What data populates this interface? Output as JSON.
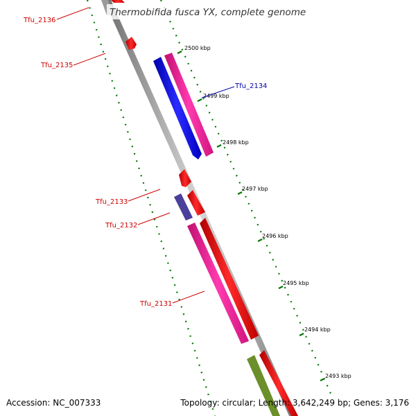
{
  "title": "Thermobifida fusca YX, complete genome",
  "footer": {
    "accession": "Accession: NC_007333",
    "topology": "Topology: circular; Length: 3,642,249 bp; Genes: 3,176"
  },
  "ticks": [
    "2500 kbp",
    "2499 kbp",
    "2498 kbp",
    "2497 kbp",
    "2496 kbp",
    "2495 kbp",
    "2494 kbp",
    "2493 kbp"
  ],
  "gene_labels": [
    "Tfu_2136",
    "Tfu_2135",
    "Tfu_2134",
    "Tfu_2133",
    "Tfu_2132",
    "Tfu_2131"
  ],
  "colors": {
    "red": "#ff0000",
    "pink": "#ff1aa3",
    "blue": "#0000ff",
    "purple": "#4a3f9a",
    "olive": "#6b8f2a",
    "label_red": "#cc0000",
    "label_blue": "#0000aa",
    "tick_green": "#007700",
    "backbone": "#8a8a8a"
  }
}
